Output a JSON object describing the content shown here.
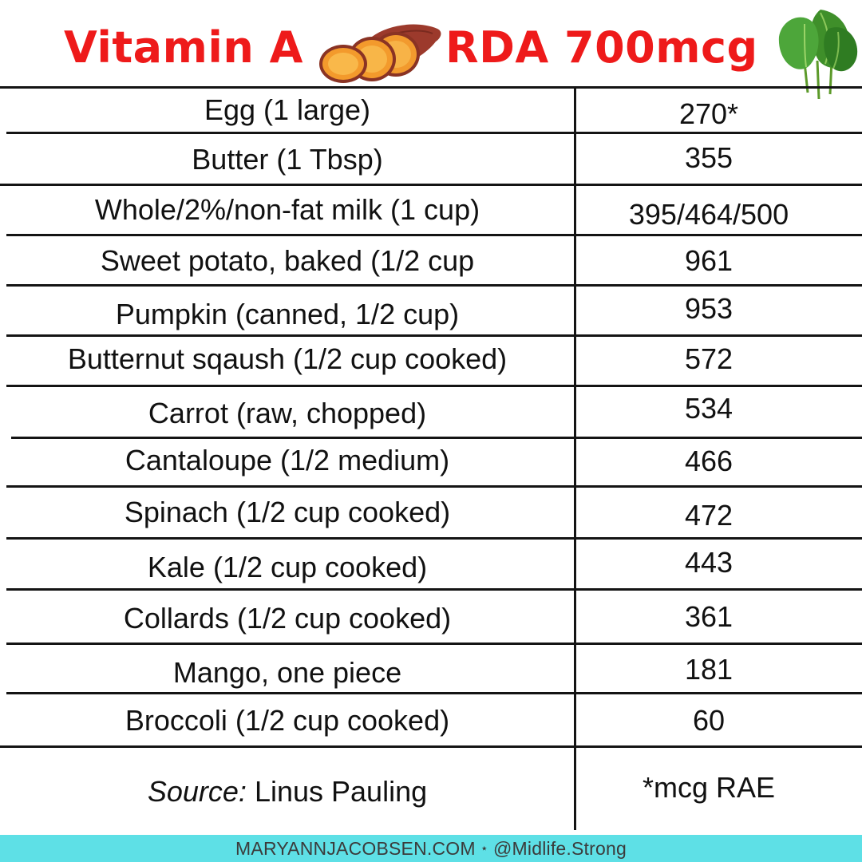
{
  "header": {
    "title_left": "Vitamin A",
    "title_right": "RDA 700mcg",
    "title_color": "#ee1a1a",
    "left_icon": "sweet-potato-icon",
    "right_icon": "spinach-icon"
  },
  "table": {
    "rows": [
      {
        "food": "Egg (1 large)",
        "value": "270*"
      },
      {
        "food": "Butter (1 Tbsp)",
        "value": "355"
      },
      {
        "food": "Whole/2%/non-fat milk (1 cup)",
        "value": "395/464/500"
      },
      {
        "food": "Sweet potato, baked (1/2 cup",
        "value": "961"
      },
      {
        "food": "Pumpkin (canned, 1/2 cup)",
        "value": "953"
      },
      {
        "food": "Butternut sqaush (1/2 cup cooked)",
        "value": "572"
      },
      {
        "food": "Carrot (raw, chopped)",
        "value": "534"
      },
      {
        "food": "Cantaloupe (1/2 medium)",
        "value": "466"
      },
      {
        "food": "Spinach (1/2 cup cooked)",
        "value": "472"
      },
      {
        "food": "Kale (1/2 cup cooked)",
        "value": "443"
      },
      {
        "food": "Collards (1/2 cup cooked)",
        "value": "361"
      },
      {
        "food": "Mango, one piece",
        "value": "181"
      },
      {
        "food": "Broccoli (1/2 cup cooked)",
        "value": "60"
      }
    ],
    "source_label": "Source:",
    "source_name": "Linus Pauling",
    "unit_note": "*mcg RAE"
  },
  "footer": {
    "website": "MARYANNJACOBSEN.COM",
    "separator": "⋆",
    "handle": "@Midlife.Strong",
    "background_color": "#5ee0e6"
  }
}
